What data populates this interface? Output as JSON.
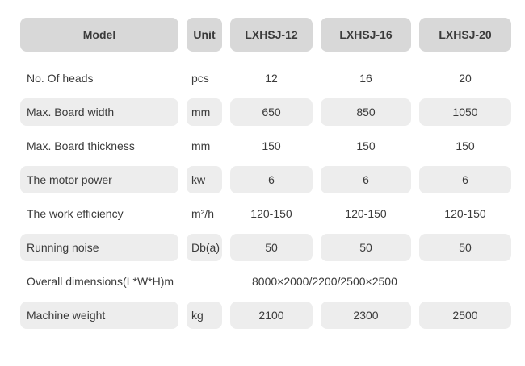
{
  "table": {
    "columns": [
      "Model",
      "Unit",
      "LXHSJ-12",
      "LXHSJ-16",
      "LXHSJ-20"
    ],
    "rows": [
      {
        "label": "No. Of heads",
        "unit": "pcs",
        "values": [
          "12",
          "16",
          "20"
        ],
        "shaded": false
      },
      {
        "label": "Max. Board width",
        "unit": "mm",
        "values": [
          "650",
          "850",
          "1050"
        ],
        "shaded": true
      },
      {
        "label": "Max. Board thickness",
        "unit": "mm",
        "values": [
          "150",
          "150",
          "150"
        ],
        "shaded": false
      },
      {
        "label": "The motor power",
        "unit": "kw",
        "values": [
          "6",
          "6",
          "6"
        ],
        "shaded": true
      },
      {
        "label": "The work efficiency",
        "unit": "m²/h",
        "values": [
          "120-150",
          "120-150",
          "120-150"
        ],
        "shaded": false
      },
      {
        "label": "Running noise",
        "unit": "Db(a)",
        "values": [
          "50",
          "50",
          "50"
        ],
        "shaded": true
      },
      {
        "label": "Overall dimensions(L*W*H)",
        "unit": "m",
        "values": [
          "8000×2000/2200/2500×2500"
        ],
        "shaded": false,
        "span_values": true
      },
      {
        "label": "Machine weight",
        "unit": "kg",
        "values": [
          "2100",
          "2300",
          "2500"
        ],
        "shaded": true
      }
    ],
    "colors": {
      "header_bg": "#d8d8d8",
      "pill_bg": "#ededed",
      "text": "#3b3b3b",
      "page_bg": "#ffffff"
    }
  }
}
